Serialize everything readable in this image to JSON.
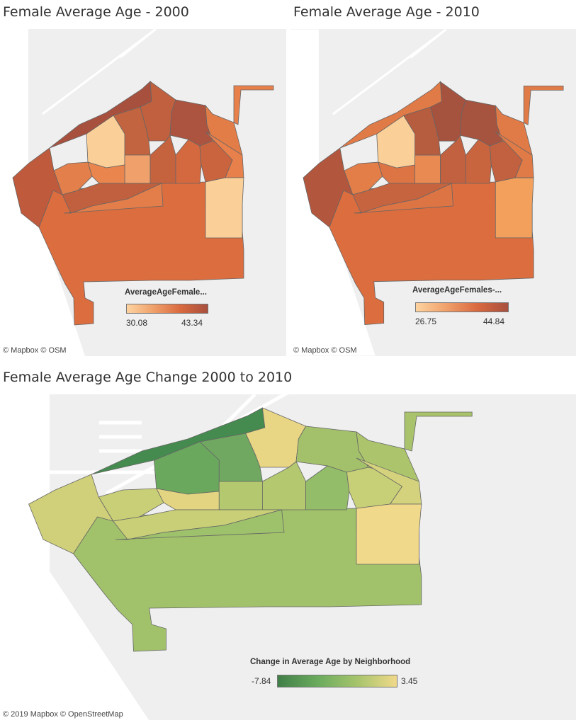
{
  "maps": [
    {
      "title": "Female Average Age - 2000",
      "attribution": "© Mapbox  © OSM",
      "legend": {
        "title": "AverageAgeFemale...",
        "min_label": "30.08",
        "max_label": "43.34",
        "min_value": 30.08,
        "max_value": 43.34,
        "gradient": [
          "#fdd3a0",
          "#f0a06a",
          "#d9693f",
          "#a8503e"
        ]
      },
      "regions": {
        "north-strip": "#a8503e",
        "northeast-hood": "#ac5440",
        "upper-center": "#c0603f",
        "center-north": "#c2643f",
        "light-hood": "#fbcf98",
        "tall-light": "#f0a06a",
        "small-left": "#e27f4a",
        "mid-left": "#ea854e",
        "center-bottom-a": "#c5633f",
        "center-bottom-b": "#d4683f",
        "center-bottom-c": "#c9643f",
        "right-hood": "#e27d47",
        "far-right": "#e8804c",
        "east-arm": "#e8804c",
        "west-coast": "#bf5a3c",
        "west-inner": "#c0603e",
        "mid-band": "#e37e4a",
        "right-notch": "#fbcf98",
        "main-south": "#dc6d3e"
      }
    },
    {
      "title": "Female Average Age - 2010",
      "attribution": "© Mapbox  © OSM",
      "legend": {
        "title": "AverageAgeFemales-...",
        "min_label": "26.75",
        "max_label": "44.84",
        "min_value": 26.75,
        "max_value": 44.84,
        "gradient": [
          "#fdd3a0",
          "#f0a06a",
          "#d9693f",
          "#a8503e"
        ]
      },
      "regions": {
        "north-strip": "#e07a46",
        "northeast-hood": "#a6533f",
        "upper-center": "#a5523f",
        "center-north": "#b65c3f",
        "light-hood": "#fbcf98",
        "tall-light": "#e88a52",
        "small-left": "#e47e48",
        "mid-left": "#dd7444",
        "center-bottom-a": "#c1613f",
        "center-bottom-b": "#c8653f",
        "center-bottom-c": "#c1613f",
        "right-hood": "#e07a46",
        "far-right": "#e07a46",
        "east-arm": "#e07a46",
        "west-coast": "#b3563e",
        "west-inner": "#c76440",
        "mid-band": "#dd7444",
        "right-notch": "#f2a05c",
        "main-south": "#dc6d3e"
      }
    },
    {
      "title": "Female Average Age Change 2000 to 2010",
      "attribution": "© 2019 Mapbox  © OpenStreetMap",
      "legend": {
        "title": "Change in Average Age by Neighborhood",
        "min_label": "-7.84",
        "max_label": "3.45",
        "min_value": -7.84,
        "max_value": 3.45,
        "gradient": [
          "#3f7f47",
          "#6aab5e",
          "#a6c46c",
          "#f0d98a"
        ]
      },
      "regions": {
        "north-strip": "#458a4e",
        "northeast-hood": "#a3c06b",
        "upper-center": "#e8d684",
        "center-north": "#70a862",
        "light-hood": "#6aa85e",
        "tall-light": "#b4c96f",
        "small-left": "#c9cf76",
        "mid-left": "#e2d480",
        "center-bottom-a": "#b3c86f",
        "center-bottom-b": "#93bd68",
        "center-bottom-c": "#c7cf77",
        "right-hood": "#acc56d",
        "far-right": "#d4d27c",
        "east-arm": "#a8c36c",
        "west-coast": "#d0d07a",
        "west-inner": "#c8cf76",
        "mid-band": "#9ec16b",
        "right-notch": "#f0d98a",
        "main-south": "#a1c26a"
      }
    }
  ]
}
